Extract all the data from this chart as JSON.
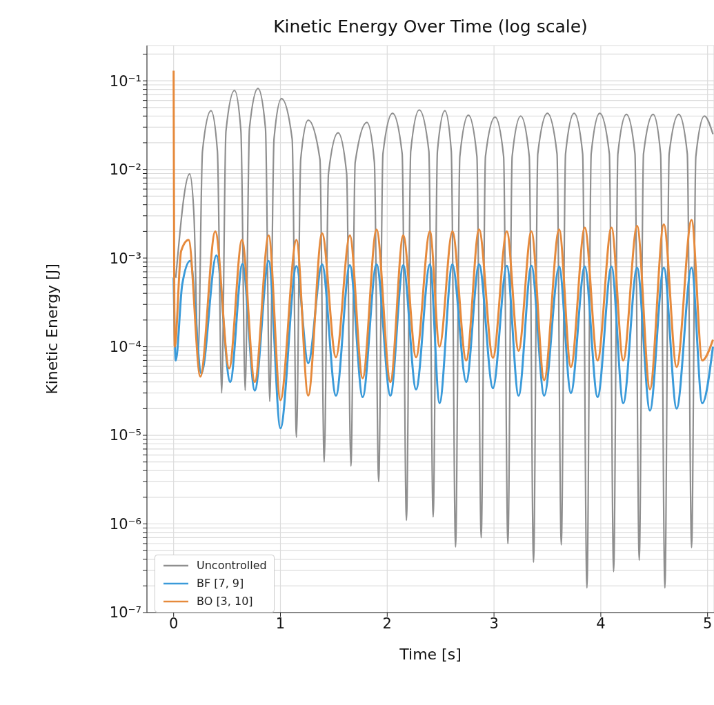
{
  "chart_data": {
    "type": "line",
    "title": "Kinetic Energy Over Time (log scale)",
    "xlabel": "Time [s]",
    "ylabel": "Kinetic Energy [J]",
    "log": "y",
    "grid": true,
    "legend": "bottom left",
    "line_style": "solid",
    "xlim": [
      -0.25,
      5.06
    ],
    "xticks": [
      0,
      1,
      2,
      3,
      4,
      5
    ],
    "ylim": [
      1e-07,
      0.25
    ],
    "yticks": [
      {
        "value": 1e-07,
        "label": "10⁻⁷"
      },
      {
        "value": 2e-07,
        "label": null
      },
      {
        "value": 3e-07,
        "label": null
      },
      {
        "value": 4e-07,
        "label": null
      },
      {
        "value": 5e-07,
        "label": null
      },
      {
        "value": 6e-07,
        "label": null
      },
      {
        "value": 7e-07,
        "label": null
      },
      {
        "value": 8e-07,
        "label": null
      },
      {
        "value": 9e-07,
        "label": null
      },
      {
        "value": 1e-06,
        "label": "10⁻⁶"
      },
      {
        "value": 2e-06,
        "label": null
      },
      {
        "value": 3e-06,
        "label": null
      },
      {
        "value": 4e-06,
        "label": null
      },
      {
        "value": 5e-06,
        "label": null
      },
      {
        "value": 6e-06,
        "label": null
      },
      {
        "value": 7e-06,
        "label": null
      },
      {
        "value": 8e-06,
        "label": null
      },
      {
        "value": 9e-06,
        "label": null
      },
      {
        "value": 1e-05,
        "label": "10⁻⁵"
      },
      {
        "value": 2e-05,
        "label": null
      },
      {
        "value": 3e-05,
        "label": null
      },
      {
        "value": 4e-05,
        "label": null
      },
      {
        "value": 5e-05,
        "label": null
      },
      {
        "value": 6e-05,
        "label": null
      },
      {
        "value": 7e-05,
        "label": null
      },
      {
        "value": 8e-05,
        "label": null
      },
      {
        "value": 9e-05,
        "label": null
      },
      {
        "value": 0.0001,
        "label": "10⁻⁴"
      },
      {
        "value": 0.0002,
        "label": null
      },
      {
        "value": 0.0003,
        "label": null
      },
      {
        "value": 0.0004,
        "label": null
      },
      {
        "value": 0.0005,
        "label": null
      },
      {
        "value": 0.0006,
        "label": null
      },
      {
        "value": 0.0007,
        "label": null
      },
      {
        "value": 0.0008,
        "label": null
      },
      {
        "value": 0.0009,
        "label": null
      },
      {
        "value": 0.001,
        "label": "10⁻³"
      },
      {
        "value": 0.002,
        "label": null
      },
      {
        "value": 0.003,
        "label": null
      },
      {
        "value": 0.004,
        "label": null
      },
      {
        "value": 0.005,
        "label": null
      },
      {
        "value": 0.006,
        "label": null
      },
      {
        "value": 0.007,
        "label": null
      },
      {
        "value": 0.008,
        "label": null
      },
      {
        "value": 0.009,
        "label": null
      },
      {
        "value": 0.01,
        "label": "10⁻²"
      },
      {
        "value": 0.02,
        "label": null
      },
      {
        "value": 0.03,
        "label": null
      },
      {
        "value": 0.04,
        "label": null
      },
      {
        "value": 0.05,
        "label": null
      },
      {
        "value": 0.06,
        "label": null
      },
      {
        "value": 0.07,
        "label": null
      },
      {
        "value": 0.08,
        "label": null
      },
      {
        "value": 0.09,
        "label": null
      },
      {
        "value": 0.1,
        "label": "10⁻¹"
      },
      {
        "value": 0.2,
        "label": null
      }
    ],
    "series": [
      {
        "name": "Uncontrolled",
        "color": "#8f8f8f",
        "x": [
          0.02,
          0.15,
          0.19,
          0.23,
          0.27,
          0.35,
          0.41,
          0.45,
          0.49,
          0.57,
          0.63,
          0.67,
          0.71,
          0.79,
          0.86,
          0.9,
          0.94,
          1.01,
          1.11,
          1.15,
          1.19,
          1.26,
          1.37,
          1.41,
          1.45,
          1.54,
          1.62,
          1.66,
          1.7,
          1.81,
          1.88,
          1.92,
          1.96,
          2.05,
          2.14,
          2.18,
          2.22,
          2.3,
          2.39,
          2.43,
          2.47,
          2.54,
          2.6,
          2.64,
          2.68,
          2.76,
          2.84,
          2.88,
          2.92,
          3.01,
          3.09,
          3.13,
          3.17,
          3.25,
          3.33,
          3.37,
          3.41,
          3.5,
          3.59,
          3.63,
          3.67,
          3.75,
          3.83,
          3.87,
          3.91,
          3.99,
          4.08,
          4.12,
          4.16,
          4.24,
          4.32,
          4.36,
          4.4,
          4.49,
          4.56,
          4.6,
          4.64,
          4.73,
          4.81,
          4.85,
          4.89,
          4.97,
          5.05
        ],
        "values": [
          0.0006,
          0.0089,
          0.0031,
          8e-05,
          0.016,
          0.046,
          0.016,
          3e-05,
          0.027,
          0.078,
          0.027,
          3.2e-05,
          0.029,
          0.082,
          0.029,
          2.4e-05,
          0.022,
          0.063,
          0.022,
          9.5e-06,
          0.013,
          0.036,
          0.013,
          5e-06,
          0.009,
          0.026,
          0.009,
          4.5e-06,
          0.012,
          0.034,
          0.012,
          3e-06,
          0.015,
          0.043,
          0.015,
          1.1e-06,
          0.016,
          0.047,
          0.016,
          1.2e-06,
          0.016,
          0.046,
          0.016,
          5.5e-07,
          0.014,
          0.041,
          0.014,
          7e-07,
          0.014,
          0.039,
          0.014,
          6e-07,
          0.014,
          0.04,
          0.014,
          3.7e-07,
          0.015,
          0.043,
          0.015,
          5.8e-07,
          0.015,
          0.043,
          0.015,
          1.9e-07,
          0.015,
          0.043,
          0.015,
          2.9e-07,
          0.015,
          0.042,
          0.015,
          3.9e-07,
          0.015,
          0.042,
          0.015,
          1.9e-07,
          0.015,
          0.042,
          0.015,
          5.4e-07,
          0.014,
          0.04,
          0.025
        ]
      },
      {
        "name": "BF [7, 9]",
        "color": "#3a9ad9",
        "x": [
          0,
          0.02,
          0.08,
          0.155,
          0.26,
          0.4,
          0.53,
          0.645,
          0.76,
          0.89,
          1.0,
          1.15,
          1.26,
          1.39,
          1.52,
          1.65,
          1.77,
          1.9,
          2.03,
          2.15,
          2.27,
          2.4,
          2.49,
          2.61,
          2.74,
          2.86,
          2.99,
          3.12,
          3.23,
          3.35,
          3.47,
          3.61,
          3.72,
          3.85,
          3.97,
          4.1,
          4.21,
          4.34,
          4.46,
          4.59,
          4.71,
          4.85,
          4.95,
          5.05
        ],
        "values": [
          0.0006,
          7e-05,
          0.0005,
          0.00093,
          5e-05,
          0.00107,
          4e-05,
          0.00086,
          3.2e-05,
          0.00093,
          1.2e-05,
          0.00081,
          6.5e-05,
          0.00085,
          2.8e-05,
          0.00083,
          2.7e-05,
          0.00085,
          2.8e-05,
          0.00083,
          3.3e-05,
          0.00085,
          2.3e-05,
          0.00085,
          4e-05,
          0.00085,
          3.4e-05,
          0.00082,
          2.8e-05,
          0.00082,
          2.8e-05,
          0.0008,
          3e-05,
          0.0008,
          2.7e-05,
          0.0008,
          2.3e-05,
          0.00078,
          1.9e-05,
          0.00078,
          2e-05,
          0.00078,
          2.3e-05,
          0.0001
        ]
      },
      {
        "name": "BO [3, 10]",
        "color": "#e68a3c",
        "x": [
          0,
          0.01,
          0.07,
          0.14,
          0.25,
          0.39,
          0.52,
          0.64,
          0.76,
          0.89,
          1.0,
          1.15,
          1.26,
          1.39,
          1.52,
          1.65,
          1.77,
          1.9,
          2.03,
          2.15,
          2.27,
          2.4,
          2.49,
          2.61,
          2.74,
          2.86,
          2.99,
          3.12,
          3.23,
          3.35,
          3.47,
          3.61,
          3.72,
          3.85,
          3.97,
          4.1,
          4.21,
          4.34,
          4.46,
          4.59,
          4.71,
          4.85,
          4.95,
          5.05
        ],
        "values": [
          0.13,
          0.0001,
          0.0012,
          0.0016,
          4.6e-05,
          0.002,
          5.7e-05,
          0.0016,
          4e-05,
          0.0018,
          2.5e-05,
          0.0016,
          2.8e-05,
          0.0019,
          7.6e-05,
          0.0018,
          4.4e-05,
          0.0021,
          4e-05,
          0.0018,
          7.6e-05,
          0.002,
          0.0001,
          0.002,
          7e-05,
          0.0021,
          7.5e-05,
          0.002,
          9e-05,
          0.002,
          4.2e-05,
          0.0021,
          5.9e-05,
          0.0022,
          7e-05,
          0.0022,
          7e-05,
          0.0023,
          3.3e-05,
          0.0024,
          5.9e-05,
          0.0027,
          7e-05,
          0.00012
        ]
      }
    ]
  }
}
